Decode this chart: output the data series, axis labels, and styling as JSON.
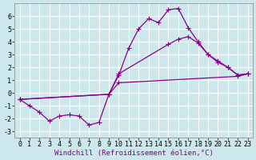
{
  "background_color": "#cce8ed",
  "grid_color": "#ffffff",
  "line_color": "#880088",
  "xlabel": "Windchill (Refroidissement éolien,°C)",
  "xlabel_fontsize": 6.5,
  "tick_fontsize": 6.0,
  "xlim": [
    -0.5,
    23.5
  ],
  "ylim": [
    -3.5,
    7.0
  ],
  "yticks": [
    -3,
    -2,
    -1,
    0,
    1,
    2,
    3,
    4,
    5,
    6
  ],
  "xticks": [
    0,
    1,
    2,
    3,
    4,
    5,
    6,
    7,
    8,
    9,
    10,
    11,
    12,
    13,
    14,
    15,
    16,
    17,
    18,
    19,
    20,
    21,
    22,
    23
  ],
  "series": [
    {
      "x": [
        0,
        1,
        2,
        3,
        4,
        5,
        6,
        7,
        8,
        9,
        10,
        11,
        12,
        13,
        14,
        15,
        16,
        17,
        18,
        19,
        20,
        21,
        22,
        23
      ],
      "y": [
        -0.5,
        -1.0,
        -1.5,
        -2.2,
        -1.8,
        -1.7,
        -1.8,
        -2.5,
        -2.3,
        -0.1,
        1.4,
        3.5,
        5.0,
        5.8,
        5.5,
        6.5,
        6.6,
        5.1,
        4.0,
        3.0,
        2.4,
        2.0,
        1.4,
        1.5
      ]
    },
    {
      "x": [
        0,
        9,
        10,
        15,
        16,
        17,
        18,
        19,
        20,
        21,
        22,
        23
      ],
      "y": [
        -0.5,
        -0.1,
        1.5,
        3.8,
        4.2,
        4.4,
        3.9,
        3.0,
        2.5,
        2.0,
        1.4,
        1.5
      ]
    },
    {
      "x": [
        0,
        9,
        10,
        22,
        23
      ],
      "y": [
        -0.5,
        -0.1,
        0.8,
        1.3,
        1.5
      ]
    }
  ]
}
